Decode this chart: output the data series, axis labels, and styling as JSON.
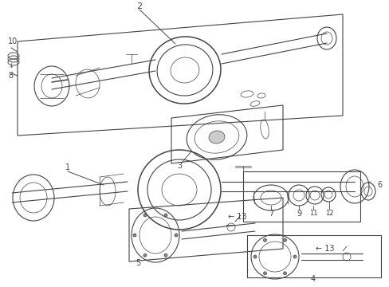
{
  "bg": "#ffffff",
  "lc": "#444444",
  "lw_thin": 0.5,
  "lw_med": 0.8,
  "lw_thick": 1.1
}
